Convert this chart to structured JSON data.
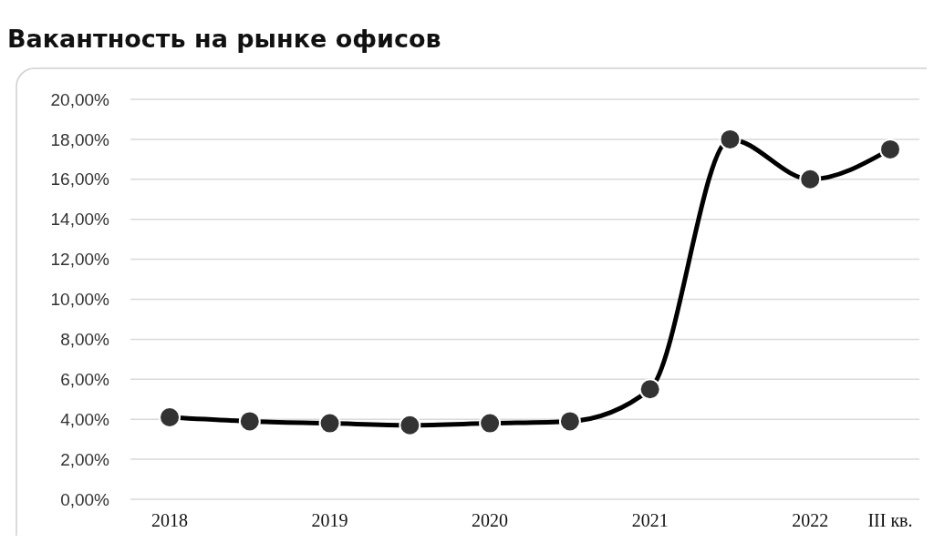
{
  "chart_data": {
    "type": "line",
    "title": "Вакантность на рынке офисов",
    "categories": [
      "2018",
      null,
      "2019",
      null,
      "2020",
      null,
      "2021",
      null,
      "2022",
      "III кв."
    ],
    "series": [
      {
        "color": "#000000",
        "values": [
          4.1,
          3.9,
          3.8,
          3.7,
          3.8,
          3.9,
          5.5,
          18.0,
          16.0,
          17.5
        ]
      }
    ],
    "ylim": [
      0,
      20
    ],
    "yticks": [
      {
        "value": 0,
        "label": "0,00%"
      },
      {
        "value": 2,
        "label": "2,00%"
      },
      {
        "value": 4,
        "label": "4,00%"
      },
      {
        "value": 6,
        "label": "6,00%"
      },
      {
        "value": 8,
        "label": "8,00%"
      },
      {
        "value": 10,
        "label": "10,00%"
      },
      {
        "value": 12,
        "label": "12,00%"
      },
      {
        "value": 14,
        "label": "14,00%"
      },
      {
        "value": 16,
        "label": "16,00%"
      },
      {
        "value": 18,
        "label": "18,00%"
      },
      {
        "value": 20,
        "label": "20,00%"
      }
    ],
    "grid": "y",
    "marker": "circle",
    "line_style": "solid"
  }
}
